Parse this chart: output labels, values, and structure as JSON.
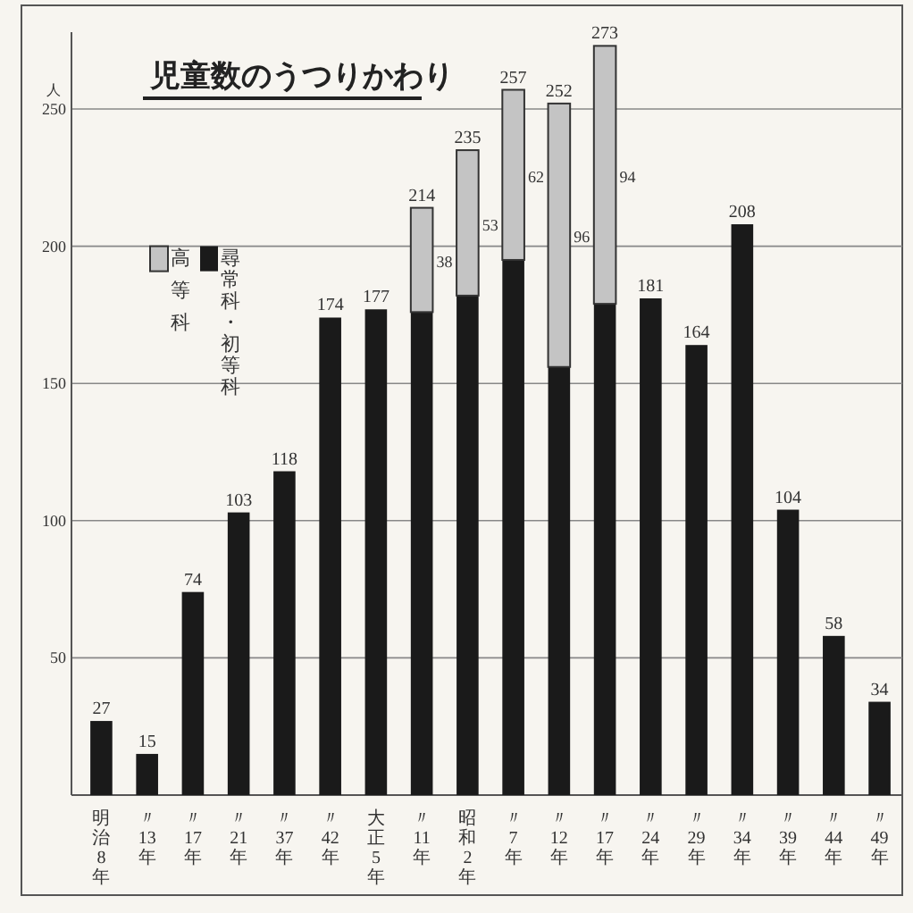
{
  "chart_data": {
    "type": "bar",
    "title": "児童数のうつりかわり",
    "ylabel": "人",
    "categories": [
      "明治8年",
      "〃13年",
      "〃17年",
      "〃21年",
      "〃37年",
      "〃42年",
      "大正5年",
      "〃11年",
      "昭和2年",
      "〃7年",
      "〃12年",
      "〃17年",
      "〃24年",
      "〃29年",
      "〃34年",
      "〃39年",
      "〃44年",
      "〃49年"
    ],
    "stacked": true,
    "series": [
      {
        "name": "尋常科・初等科",
        "color": "#1a1a1a",
        "values": [
          27,
          15,
          74,
          103,
          118,
          174,
          177,
          176,
          182,
          195,
          156,
          179,
          181,
          164,
          208,
          104,
          58,
          34
        ]
      },
      {
        "name": "高等科",
        "color": "#c4c4c4",
        "values": [
          null,
          null,
          null,
          null,
          null,
          null,
          null,
          38,
          53,
          62,
          96,
          94,
          null,
          null,
          null,
          null,
          null,
          null
        ],
        "value_labels": [
          null,
          null,
          null,
          null,
          null,
          null,
          null,
          "38",
          "53",
          "62",
          "96",
          "94",
          null,
          null,
          null,
          null,
          null,
          null
        ]
      }
    ],
    "totals": [
      "27",
      "15",
      "74",
      "103",
      "118",
      "174",
      "177",
      "214",
      "235",
      "257",
      "252",
      "273",
      "181",
      "164",
      "208",
      "104",
      "58",
      "34"
    ],
    "ylim": [
      0,
      278
    ],
    "yticks": [
      50,
      100,
      150,
      200,
      250
    ],
    "grid": "y",
    "legend": "top left"
  }
}
